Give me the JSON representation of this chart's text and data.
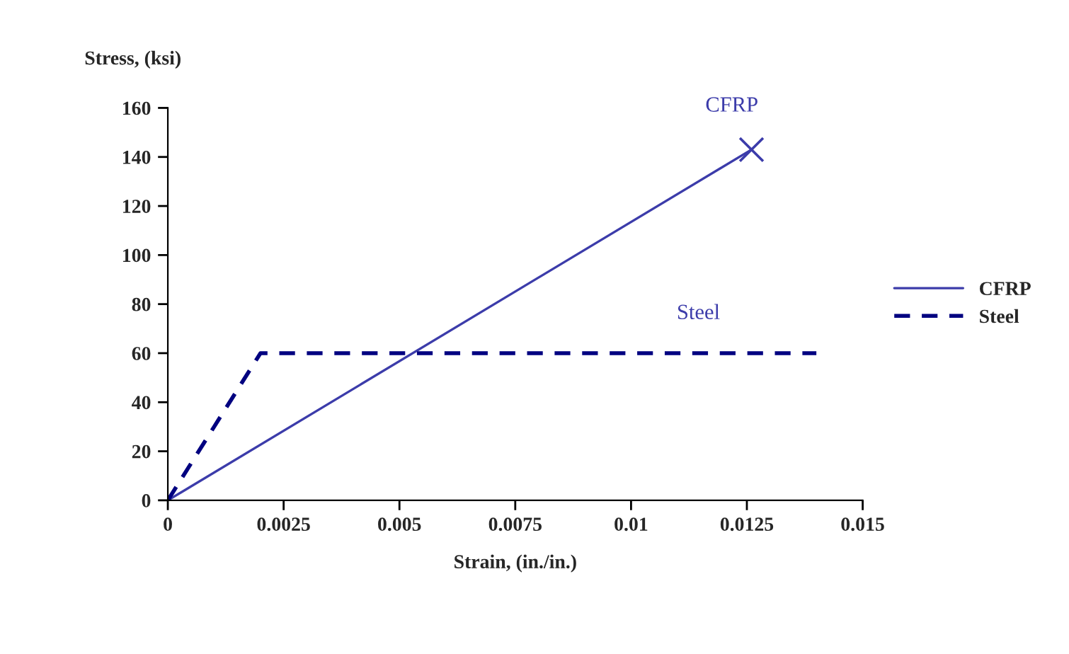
{
  "chart_data": {
    "type": "line",
    "xlabel": "Strain, (in./in.)",
    "ylabel": "Stress, (ksi)",
    "xlim": [
      0,
      0.015
    ],
    "xticks": [
      0,
      0.0025,
      0.005,
      0.0075,
      0.01,
      0.0125,
      0.015
    ],
    "ylim": [
      0,
      160
    ],
    "yticks": [
      0,
      20,
      40,
      60,
      80,
      100,
      120,
      140,
      160
    ],
    "grid": false,
    "legend": "right",
    "series": [
      {
        "name": "CFRP",
        "color": "#3c3caa",
        "x": [
          0,
          0.0126
        ],
        "values": [
          0,
          143
        ],
        "line_style": "solid",
        "marker": "none"
      },
      {
        "name": "Steel",
        "color": "#000080",
        "x": [
          0,
          0.002,
          0.014
        ],
        "values": [
          0,
          60,
          60
        ],
        "line_style": "dashed",
        "marker": "none"
      },
      {
        "type": "scatter",
        "color": "#3c3caa",
        "x": [
          0.0126
        ],
        "values": [
          143
        ],
        "marker": "cross"
      }
    ],
    "annotations": [
      "CFRP",
      "Steel"
    ]
  }
}
